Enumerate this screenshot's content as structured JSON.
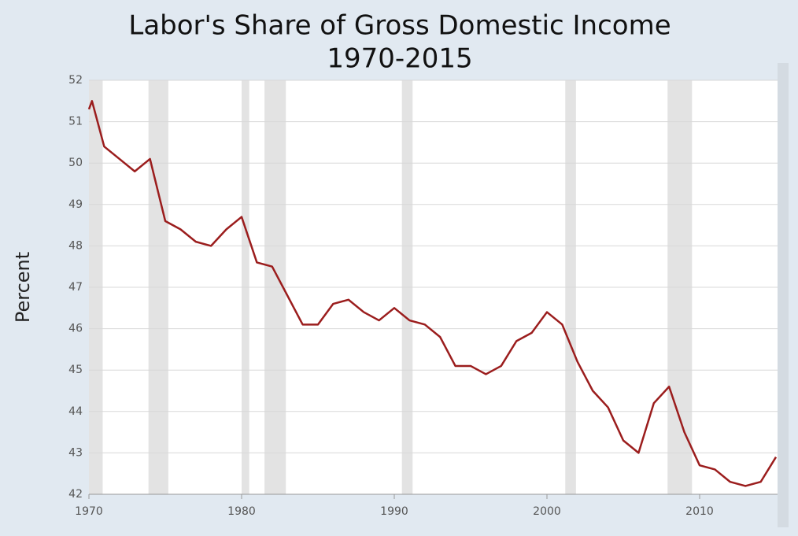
{
  "chart_data": {
    "type": "line",
    "title": "Labor's Share of Gross Domestic Income",
    "subtitle": "1970-2015",
    "y_label": "Percent",
    "xlim": [
      1970,
      2015
    ],
    "xticks": [
      1970,
      1980,
      1990,
      2000,
      2010
    ],
    "ylim": [
      42,
      52
    ],
    "yticks": [
      42,
      43,
      44,
      45,
      46,
      47,
      48,
      49,
      50,
      51,
      52
    ],
    "grid": true,
    "recession_color": "#e3e3e3",
    "recessions": [
      [
        1970,
        1970.9
      ],
      [
        1973.9,
        1975.2
      ],
      [
        1980.0,
        1980.5
      ],
      [
        1981.5,
        1982.9
      ],
      [
        1990.5,
        1991.2
      ],
      [
        2001.2,
        2001.9
      ],
      [
        2007.9,
        2009.5
      ]
    ],
    "x": [
      1970,
      1970.2,
      1971,
      1972,
      1973,
      1974,
      1975,
      1976,
      1977,
      1978,
      1979,
      1980,
      1981,
      1982,
      1983,
      1984,
      1985,
      1986,
      1987,
      1988,
      1989,
      1990,
      1991,
      1992,
      1993,
      1994,
      1995,
      1996,
      1997,
      1998,
      1999,
      2000,
      2001,
      2002,
      2003,
      2004,
      2005,
      2006,
      2007,
      2008,
      2009,
      2010,
      2011,
      2012,
      2013,
      2014,
      2015
    ],
    "series": [
      {
        "color": "#9b1d1d",
        "values": [
          51.3,
          51.5,
          50.4,
          50.1,
          49.8,
          50.1,
          48.6,
          48.4,
          48.1,
          48.0,
          48.4,
          48.7,
          47.6,
          47.5,
          46.8,
          46.1,
          46.1,
          46.6,
          46.7,
          46.4,
          46.2,
          46.5,
          46.2,
          46.1,
          45.8,
          45.1,
          45.1,
          44.9,
          45.1,
          45.7,
          45.9,
          46.4,
          46.1,
          45.2,
          44.5,
          44.1,
          43.3,
          43.0,
          44.2,
          44.6,
          43.5,
          42.7,
          42.6,
          42.3,
          42.2,
          42.3,
          42.9
        ]
      }
    ]
  }
}
